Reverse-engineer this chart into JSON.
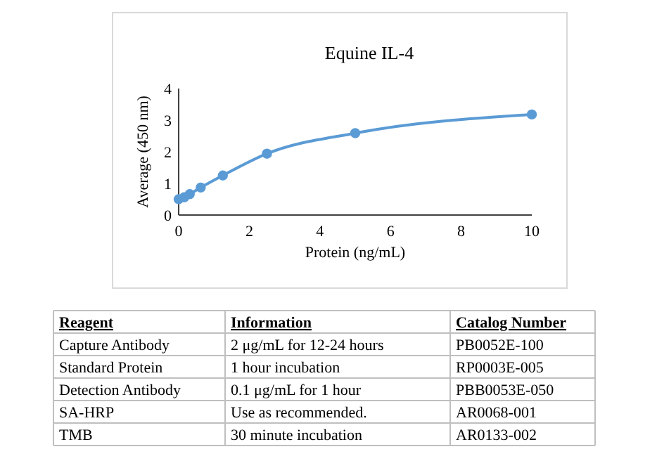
{
  "chart_data": [
    {
      "type": "line",
      "title": "Equine IL-4",
      "xlabel": "Protein (ng/mL)",
      "ylabel": "Average (450 nm)",
      "x": [
        0,
        0.156,
        0.3125,
        0.625,
        1.25,
        2.5,
        5,
        10
      ],
      "series": [
        {
          "color": "#5b9bd5",
          "values": [
            0.5,
            0.56,
            0.66,
            0.87,
            1.25,
            1.94,
            2.59,
            3.18
          ]
        }
      ],
      "xlim": [
        0,
        10
      ],
      "xticks": [
        0,
        2,
        4,
        6,
        8,
        10
      ],
      "ylim": [
        0,
        4
      ],
      "yticks": [
        0,
        1,
        2,
        3,
        4
      ],
      "grid": false,
      "marker": "circle",
      "line_style": "solid"
    },
    {
      "type": "other",
      "annotations": [
        "Reagent",
        "Information",
        "Catalog Number",
        "Capture Antibody",
        "2 μg/mL for 12-24 hours",
        "PB0052E-100",
        "Standard Protein",
        "1 hour incubation",
        "RP0003E-005",
        "Detection Antibody",
        "0.1 μg/mL for 1 hour",
        "PBB0053E-050",
        "SA-HRP",
        "Use as recommended.",
        "AR0068-001",
        "TMB",
        "30 minute incubation",
        "AR0133-002"
      ]
    }
  ]
}
